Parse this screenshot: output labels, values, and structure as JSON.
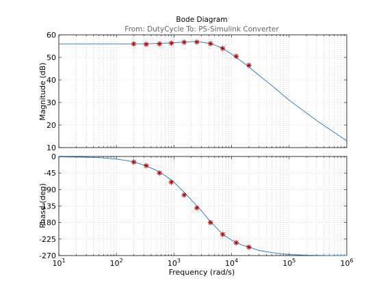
{
  "chart_data": {
    "type": "line",
    "title": "Bode Diagram",
    "subtitle": "From: DutyCycle  To: PS-Simulink Converter",
    "xlabel": "Frequency  (rad/s)",
    "xscale": "log",
    "xlim": [
      10,
      1000000
    ],
    "x_ticks": [
      {
        "base": "10",
        "exp": "1"
      },
      {
        "base": "10",
        "exp": "2"
      },
      {
        "base": "10",
        "exp": "3"
      },
      {
        "base": "10",
        "exp": "4"
      },
      {
        "base": "10",
        "exp": "5"
      },
      {
        "base": "10",
        "exp": "6"
      }
    ],
    "grid": true,
    "subplots": [
      {
        "name": "magnitude",
        "ylabel": "Magnitude (dB)",
        "ylim": [
          10,
          60
        ],
        "yticks": [
          10,
          20,
          30,
          40,
          50,
          60
        ],
        "curve": {
          "x": [
            10,
            100,
            200,
            400,
            700,
            1000,
            1500,
            2000,
            2500,
            3000,
            4000,
            5000,
            7000,
            10000,
            15000,
            20000,
            30000,
            50000,
            100000,
            300000,
            1000000
          ],
          "y": [
            56,
            56,
            56,
            56.1,
            56.3,
            56.5,
            56.8,
            57,
            57,
            56.8,
            56.2,
            55.6,
            54,
            51.5,
            48.2,
            45.8,
            42,
            37.5,
            31,
            22,
            13
          ]
        },
        "markers": {
          "x": [
            200,
            330,
            560,
            900,
            1500,
            2500,
            4300,
            7000,
            12000,
            20000
          ],
          "y": [
            56,
            55.8,
            56,
            56.3,
            56.7,
            56.8,
            56.1,
            54,
            50.5,
            46.5
          ]
        }
      },
      {
        "name": "phase",
        "ylabel": "Phase (deg)",
        "ylim": [
          -270,
          0
        ],
        "yticks": [
          0,
          -45,
          -90,
          -135,
          -180,
          -225,
          -270
        ],
        "curve": {
          "x": [
            10,
            30,
            50,
            100,
            150,
            200,
            300,
            500,
            700,
            1000,
            1500,
            2000,
            3000,
            4000,
            5000,
            7000,
            10000,
            15000,
            20000,
            30000,
            50000,
            100000,
            200000,
            500000,
            1000000
          ],
          "y": [
            -1,
            -2,
            -3,
            -7,
            -11,
            -15,
            -23,
            -38,
            -52,
            -70,
            -98,
            -118,
            -148,
            -172,
            -188,
            -212,
            -228,
            -241,
            -247,
            -256,
            -262,
            -267,
            -269,
            -270,
            -270
          ]
        },
        "markers": {
          "x": [
            200,
            330,
            560,
            900,
            1500,
            2500,
            4300,
            7000,
            12000,
            20000
          ],
          "y": [
            -15,
            -25,
            -45,
            -70,
            -105,
            -140,
            -180,
            -212,
            -235,
            -247
          ]
        }
      }
    ]
  }
}
